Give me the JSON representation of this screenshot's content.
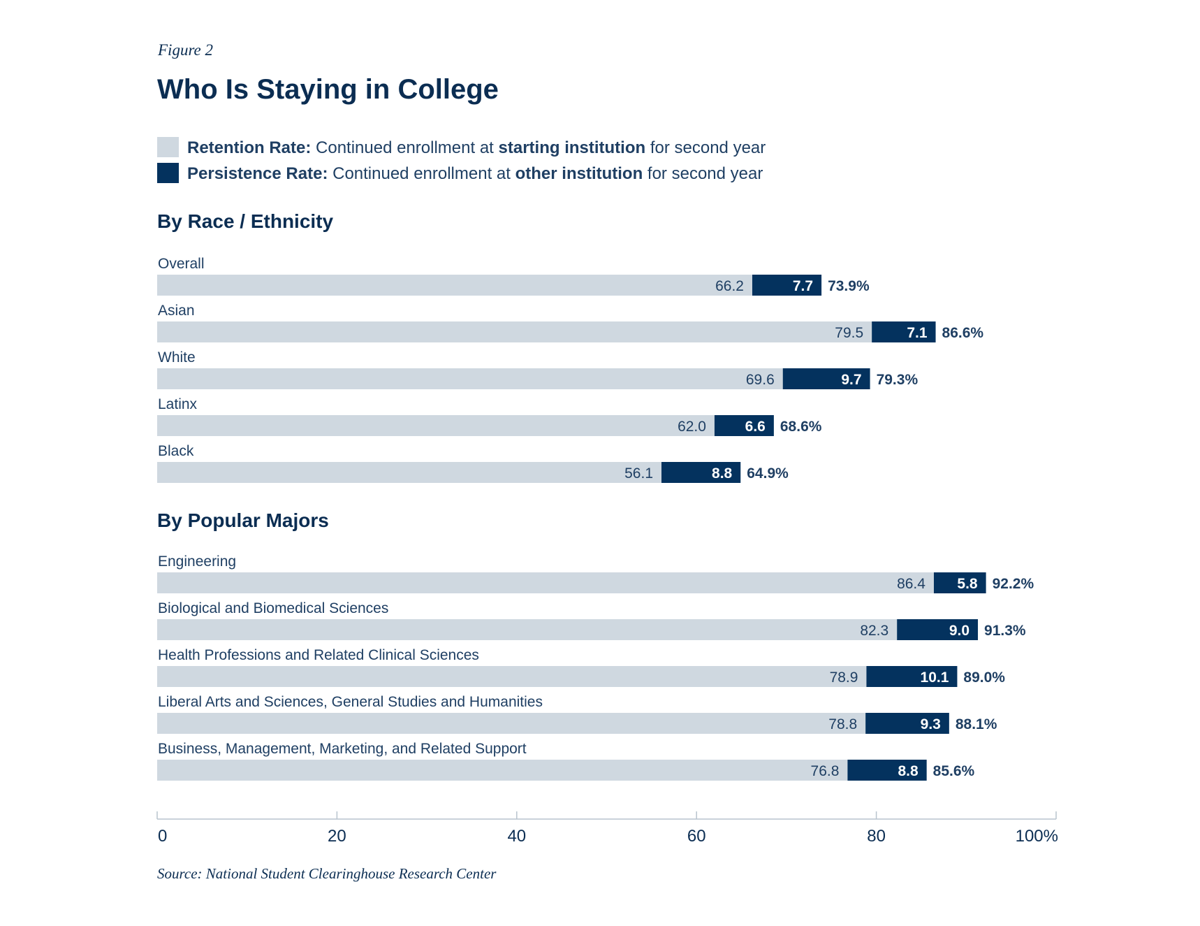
{
  "figure_label": "Figure 2",
  "title": "Who Is Staying in College",
  "colors": {
    "retention": "#cfd8e0",
    "persistence": "#04325e",
    "title": "#0b2d52",
    "text": "#1f3f63",
    "axis": "#b9c4ce"
  },
  "legend": [
    {
      "key": "retention",
      "name": "Retention Rate:",
      "parts": [
        {
          "text": " Continued enrollment at ",
          "bold": false
        },
        {
          "text": "starting institution",
          "bold": true
        },
        {
          "text": " for second year",
          "bold": false
        }
      ]
    },
    {
      "key": "persistence",
      "name": "Persistence Rate:",
      "parts": [
        {
          "text": " Continued enrollment at ",
          "bold": false
        },
        {
          "text": "other institution",
          "bold": true
        },
        {
          "text": " for second year",
          "bold": false
        }
      ]
    }
  ],
  "chart_data": {
    "type": "bar",
    "orientation": "horizontal",
    "stacked": true,
    "xlim": [
      0,
      100
    ],
    "xticks": [
      "0",
      "20",
      "40",
      "60",
      "80",
      "100%"
    ],
    "series_names": [
      "Retention Rate",
      "Persistence Rate"
    ],
    "groups": [
      {
        "heading": "By Race / Ethnicity",
        "rows": [
          {
            "label": "Overall",
            "retention": 66.2,
            "persistence": 7.7,
            "retention_label": "66.2",
            "persistence_label": "7.7",
            "total_label": "73.9%"
          },
          {
            "label": "Asian",
            "retention": 79.5,
            "persistence": 7.1,
            "retention_label": "79.5",
            "persistence_label": "7.1",
            "total_label": "86.6%"
          },
          {
            "label": "White",
            "retention": 69.6,
            "persistence": 9.7,
            "retention_label": "69.6",
            "persistence_label": "9.7",
            "total_label": "79.3%"
          },
          {
            "label": "Latinx",
            "retention": 62.0,
            "persistence": 6.6,
            "retention_label": "62.0",
            "persistence_label": "6.6",
            "total_label": "68.6%"
          },
          {
            "label": "Black",
            "retention": 56.1,
            "persistence": 8.8,
            "retention_label": "56.1",
            "persistence_label": "8.8",
            "total_label": "64.9%"
          }
        ]
      },
      {
        "heading": "By Popular Majors",
        "rows": [
          {
            "label": "Engineering",
            "retention": 86.4,
            "persistence": 5.8,
            "retention_label": "86.4",
            "persistence_label": "5.8",
            "total_label": "92.2%"
          },
          {
            "label": "Biological and Biomedical Sciences",
            "retention": 82.3,
            "persistence": 9.0,
            "retention_label": "82.3",
            "persistence_label": "9.0",
            "total_label": "91.3%"
          },
          {
            "label": "Health Professions and Related Clinical Sciences",
            "retention": 78.9,
            "persistence": 10.1,
            "retention_label": "78.9",
            "persistence_label": "10.1",
            "total_label": "89.0%"
          },
          {
            "label": "Liberal Arts and Sciences, General Studies and Humanities",
            "retention": 78.8,
            "persistence": 9.3,
            "retention_label": "78.8",
            "persistence_label": "9.3",
            "total_label": "88.1%"
          },
          {
            "label": "Business, Management, Marketing, and Related Support",
            "retention": 76.8,
            "persistence": 8.8,
            "retention_label": "76.8",
            "persistence_label": "8.8",
            "total_label": "85.6%"
          }
        ]
      }
    ]
  },
  "source": "Source: National Student Clearinghouse Research Center"
}
